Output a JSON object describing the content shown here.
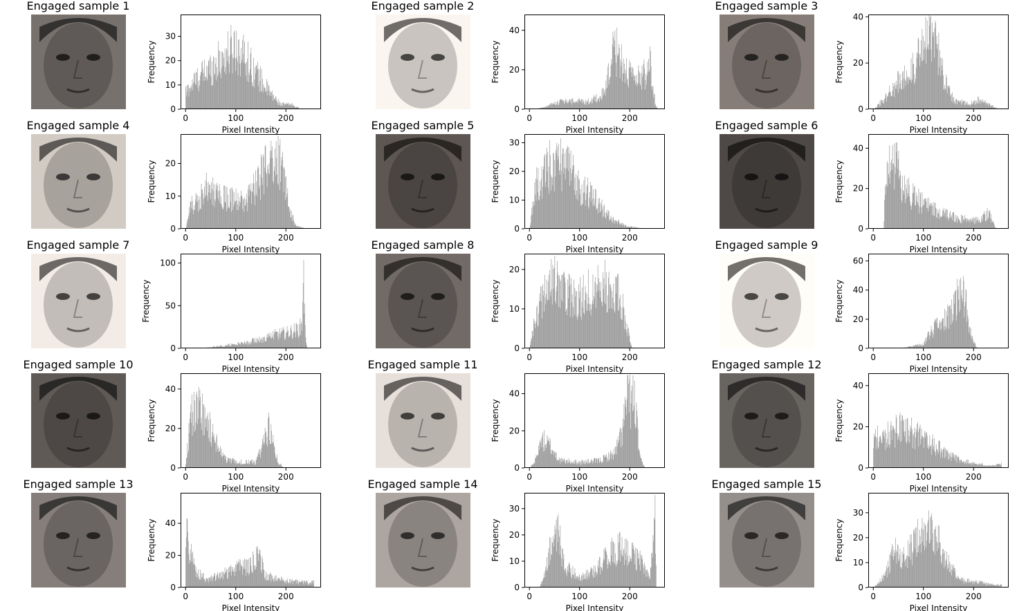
{
  "chart_data": [
    {
      "type": "bar",
      "title": "Engaged sample 1",
      "xlabel": "Pixel Intensity",
      "ylabel": "Frequency",
      "xlim": [
        -10,
        270
      ],
      "ylim": [
        0,
        39
      ],
      "xticks": [
        0,
        100,
        200
      ],
      "yticks": [
        0,
        10,
        20,
        30
      ],
      "bar_color": "#999999",
      "face_tone": "#5f5a57",
      "profile": [
        [
          0,
          7
        ],
        [
          20,
          12
        ],
        [
          50,
          17
        ],
        [
          80,
          22
        ],
        [
          100,
          26
        ],
        [
          120,
          21
        ],
        [
          150,
          12
        ],
        [
          170,
          6
        ],
        [
          190,
          2
        ],
        [
          210,
          2
        ],
        [
          230,
          0
        ]
      ]
    },
    {
      "type": "bar",
      "title": "Engaged sample 2",
      "xlabel": "Pixel Intensity",
      "ylabel": "Frequency",
      "xlim": [
        -10,
        270
      ],
      "ylim": [
        0,
        48
      ],
      "xticks": [
        0,
        100,
        200
      ],
      "yticks": [
        0,
        20,
        40
      ],
      "bar_color": "#999999",
      "face_tone": "#c9c4bf",
      "profile": [
        [
          10,
          0
        ],
        [
          30,
          1
        ],
        [
          60,
          4
        ],
        [
          90,
          4
        ],
        [
          120,
          4
        ],
        [
          150,
          8
        ],
        [
          165,
          27
        ],
        [
          175,
          30
        ],
        [
          190,
          20
        ],
        [
          210,
          14
        ],
        [
          230,
          18
        ],
        [
          240,
          25
        ],
        [
          250,
          3
        ],
        [
          255,
          0
        ]
      ]
    },
    {
      "type": "bar",
      "title": "Engaged sample 3",
      "xlabel": "Pixel Intensity",
      "ylabel": "Frequency",
      "xlim": [
        -10,
        270
      ],
      "ylim": [
        0,
        41
      ],
      "xticks": [
        0,
        100,
        200
      ],
      "yticks": [
        0,
        20,
        40
      ],
      "bar_color": "#999999",
      "face_tone": "#6b6460",
      "profile": [
        [
          0,
          0
        ],
        [
          20,
          4
        ],
        [
          50,
          12
        ],
        [
          80,
          18
        ],
        [
          100,
          26
        ],
        [
          110,
          32
        ],
        [
          125,
          28
        ],
        [
          140,
          15
        ],
        [
          160,
          4
        ],
        [
          190,
          2
        ],
        [
          210,
          4
        ],
        [
          240,
          1
        ],
        [
          250,
          0
        ]
      ]
    },
    {
      "type": "bar",
      "title": "Engaged sample 4",
      "xlabel": "Pixel Intensity",
      "ylabel": "Frequency",
      "xlim": [
        -10,
        270
      ],
      "ylim": [
        0,
        29
      ],
      "xticks": [
        0,
        100,
        200
      ],
      "yticks": [
        0,
        10,
        20
      ],
      "bar_color": "#999999",
      "face_tone": "#a8a29c",
      "profile": [
        [
          0,
          0
        ],
        [
          10,
          7
        ],
        [
          40,
          12
        ],
        [
          60,
          11
        ],
        [
          90,
          9
        ],
        [
          120,
          8
        ],
        [
          150,
          16
        ],
        [
          175,
          21
        ],
        [
          195,
          20
        ],
        [
          205,
          6
        ],
        [
          220,
          1
        ],
        [
          240,
          0
        ]
      ]
    },
    {
      "type": "bar",
      "title": "Engaged sample 5",
      "xlabel": "Pixel Intensity",
      "ylabel": "Frequency",
      "xlim": [
        -10,
        270
      ],
      "ylim": [
        0,
        33
      ],
      "xticks": [
        0,
        100,
        200
      ],
      "yticks": [
        0,
        10,
        20,
        30
      ],
      "bar_color": "#999999",
      "face_tone": "#4a4542",
      "profile": [
        [
          0,
          0
        ],
        [
          10,
          14
        ],
        [
          40,
          22
        ],
        [
          70,
          22
        ],
        [
          100,
          15
        ],
        [
          130,
          10
        ],
        [
          160,
          4
        ],
        [
          190,
          1
        ],
        [
          230,
          0
        ]
      ]
    },
    {
      "type": "bar",
      "title": "Engaged sample 6",
      "xlabel": "Pixel Intensity",
      "ylabel": "Frequency",
      "xlim": [
        -10,
        270
      ],
      "ylim": [
        0,
        47
      ],
      "xticks": [
        0,
        100,
        200
      ],
      "yticks": [
        0,
        20,
        40
      ],
      "bar_color": "#999999",
      "face_tone": "#3e3a38",
      "profile": [
        [
          20,
          0
        ],
        [
          25,
          30
        ],
        [
          40,
          36
        ],
        [
          60,
          20
        ],
        [
          90,
          14
        ],
        [
          130,
          8
        ],
        [
          170,
          5
        ],
        [
          210,
          4
        ],
        [
          230,
          8
        ],
        [
          240,
          2
        ],
        [
          245,
          0
        ]
      ]
    },
    {
      "type": "bar",
      "title": "Engaged sample 7",
      "xlabel": "Pixel Intensity",
      "ylabel": "Frequency",
      "xlim": [
        -10,
        270
      ],
      "ylim": [
        0,
        111
      ],
      "xticks": [
        0,
        100,
        200
      ],
      "yticks": [
        0,
        50,
        100
      ],
      "bar_color": "#999999",
      "face_tone": "#c2bdb8",
      "profile": [
        [
          30,
          0
        ],
        [
          60,
          2
        ],
        [
          100,
          5
        ],
        [
          140,
          9
        ],
        [
          170,
          15
        ],
        [
          200,
          18
        ],
        [
          225,
          22
        ],
        [
          232,
          28
        ],
        [
          234,
          100
        ],
        [
          238,
          20
        ],
        [
          242,
          0
        ]
      ]
    },
    {
      "type": "bar",
      "title": "Engaged sample 8",
      "xlabel": "Pixel Intensity",
      "ylabel": "Frequency",
      "xlim": [
        -10,
        270
      ],
      "ylim": [
        0,
        24
      ],
      "xticks": [
        0,
        100,
        200
      ],
      "yticks": [
        0,
        10,
        20
      ],
      "bar_color": "#999999",
      "face_tone": "#5a5552",
      "profile": [
        [
          0,
          0
        ],
        [
          10,
          7
        ],
        [
          40,
          18
        ],
        [
          60,
          15
        ],
        [
          90,
          12
        ],
        [
          120,
          14
        ],
        [
          150,
          16
        ],
        [
          180,
          13
        ],
        [
          195,
          5
        ],
        [
          205,
          0
        ],
        [
          245,
          0
        ]
      ]
    },
    {
      "type": "bar",
      "title": "Engaged sample 9",
      "xlabel": "Pixel Intensity",
      "ylabel": "Frequency",
      "xlim": [
        -10,
        270
      ],
      "ylim": [
        0,
        65
      ],
      "xticks": [
        0,
        100,
        200
      ],
      "yticks": [
        0,
        20,
        40,
        60
      ],
      "bar_color": "#999999",
      "face_tone": "#cfcac6",
      "profile": [
        [
          50,
          0
        ],
        [
          70,
          1
        ],
        [
          100,
          3
        ],
        [
          115,
          12
        ],
        [
          140,
          18
        ],
        [
          160,
          26
        ],
        [
          175,
          48
        ],
        [
          185,
          30
        ],
        [
          195,
          8
        ],
        [
          205,
          1
        ],
        [
          210,
          0
        ]
      ]
    },
    {
      "type": "bar",
      "title": "Engaged sample 10",
      "xlabel": "Pixel Intensity",
      "ylabel": "Frequency",
      "xlim": [
        -10,
        270
      ],
      "ylim": [
        0,
        48
      ],
      "xticks": [
        0,
        100,
        200
      ],
      "yticks": [
        0,
        20,
        40
      ],
      "bar_color": "#999999",
      "face_tone": "#4d4845",
      "profile": [
        [
          0,
          2
        ],
        [
          10,
          25
        ],
        [
          25,
          30
        ],
        [
          50,
          20
        ],
        [
          75,
          5
        ],
        [
          100,
          3
        ],
        [
          140,
          3
        ],
        [
          155,
          12
        ],
        [
          165,
          20
        ],
        [
          175,
          12
        ],
        [
          185,
          3
        ],
        [
          195,
          0
        ]
      ]
    },
    {
      "type": "bar",
      "title": "Engaged sample 11",
      "xlabel": "Pixel Intensity",
      "ylabel": "Frequency",
      "xlim": [
        -10,
        270
      ],
      "ylim": [
        0,
        51
      ],
      "xticks": [
        0,
        100,
        200
      ],
      "yticks": [
        0,
        20,
        40
      ],
      "bar_color": "#999999",
      "face_tone": "#b9b3ae",
      "profile": [
        [
          0,
          0
        ],
        [
          10,
          3
        ],
        [
          25,
          15
        ],
        [
          40,
          12
        ],
        [
          60,
          4
        ],
        [
          100,
          3
        ],
        [
          140,
          4
        ],
        [
          170,
          8
        ],
        [
          185,
          20
        ],
        [
          195,
          38
        ],
        [
          210,
          35
        ],
        [
          220,
          5
        ],
        [
          230,
          0
        ]
      ]
    },
    {
      "type": "bar",
      "title": "Engaged sample 12",
      "xlabel": "Pixel Intensity",
      "ylabel": "Frequency",
      "xlim": [
        -10,
        270
      ],
      "ylim": [
        0,
        46
      ],
      "xticks": [
        0,
        100,
        200
      ],
      "yticks": [
        0,
        20,
        40
      ],
      "bar_color": "#999999",
      "face_tone": "#53504d",
      "profile": [
        [
          0,
          14
        ],
        [
          30,
          16
        ],
        [
          60,
          20
        ],
        [
          90,
          15
        ],
        [
          120,
          11
        ],
        [
          160,
          5
        ],
        [
          200,
          2
        ],
        [
          240,
          1
        ],
        [
          258,
          2
        ]
      ]
    },
    {
      "type": "bar",
      "title": "Engaged sample 13",
      "xlabel": "Pixel Intensity",
      "ylabel": "Frequency",
      "xlim": [
        -10,
        270
      ],
      "ylim": [
        0,
        59
      ],
      "xticks": [
        0,
        100,
        200
      ],
      "yticks": [
        0,
        20,
        40
      ],
      "bar_color": "#999999",
      "face_tone": "#6a6562",
      "profile": [
        [
          0,
          45
        ],
        [
          8,
          22
        ],
        [
          20,
          10
        ],
        [
          40,
          5
        ],
        [
          70,
          8
        ],
        [
          100,
          12
        ],
        [
          130,
          14
        ],
        [
          145,
          20
        ],
        [
          160,
          7
        ],
        [
          200,
          4
        ],
        [
          250,
          3
        ],
        [
          258,
          4
        ]
      ]
    },
    {
      "type": "bar",
      "title": "Engaged sample 14",
      "xlabel": "Pixel Intensity",
      "ylabel": "Frequency",
      "xlim": [
        -10,
        270
      ],
      "ylim": [
        0,
        36
      ],
      "xticks": [
        0,
        100,
        200
      ],
      "yticks": [
        0,
        10,
        20,
        30
      ],
      "bar_color": "#999999",
      "face_tone": "#8a8480",
      "profile": [
        [
          20,
          0
        ],
        [
          30,
          5
        ],
        [
          45,
          18
        ],
        [
          55,
          22
        ],
        [
          70,
          8
        ],
        [
          100,
          4
        ],
        [
          130,
          6
        ],
        [
          160,
          14
        ],
        [
          190,
          15
        ],
        [
          220,
          10
        ],
        [
          240,
          3
        ],
        [
          250,
          25
        ],
        [
          253,
          0
        ]
      ]
    },
    {
      "type": "bar",
      "title": "Engaged sample 15",
      "xlabel": "Pixel Intensity",
      "ylabel": "Frequency",
      "xlim": [
        -10,
        270
      ],
      "ylim": [
        0,
        38
      ],
      "xticks": [
        0,
        100,
        200
      ],
      "yticks": [
        0,
        10,
        20,
        30
      ],
      "bar_color": "#999999",
      "face_tone": "#777270",
      "profile": [
        [
          0,
          0
        ],
        [
          15,
          3
        ],
        [
          30,
          8
        ],
        [
          40,
          18
        ],
        [
          55,
          10
        ],
        [
          80,
          17
        ],
        [
          105,
          24
        ],
        [
          130,
          18
        ],
        [
          150,
          10
        ],
        [
          170,
          3
        ],
        [
          210,
          2
        ],
        [
          240,
          1
        ],
        [
          258,
          1
        ]
      ]
    }
  ]
}
